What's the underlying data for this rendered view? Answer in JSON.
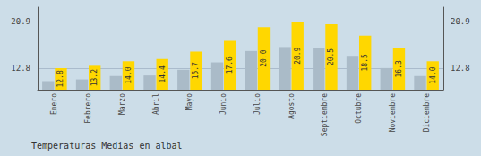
{
  "chart_data": {
    "type": "bar",
    "title": "Temperaturas Medias en albal",
    "categories": [
      "Enero",
      "Febrero",
      "Marzo",
      "Abril",
      "Mayo",
      "Junio",
      "Julio",
      "Agosto",
      "Septiembre",
      "Octubre",
      "Noviembre",
      "Diciembre"
    ],
    "series": [
      {
        "color": "#AABBC8",
        "values": [
          10.5,
          10.8,
          11.4,
          11.5,
          12.5,
          13.8,
          15.8,
          16.5,
          16.3,
          14.8,
          12.8,
          11.4
        ]
      },
      {
        "color": "#FFD700",
        "data_labels": true,
        "values": [
          12.8,
          13.2,
          14.0,
          14.4,
          15.7,
          17.6,
          20.0,
          20.9,
          20.5,
          18.5,
          16.3,
          14.0
        ],
        "value_labels": [
          "12.8",
          "13.2",
          "14.0",
          "14.4",
          "15.7",
          "17.6",
          "20.0",
          "20.9",
          "20.5",
          "18.5",
          "16.3",
          "14.0"
        ]
      }
    ],
    "ylim": [
      9.0,
      23.5
    ],
    "yticks": [
      12.8,
      20.9
    ],
    "grid": true
  }
}
